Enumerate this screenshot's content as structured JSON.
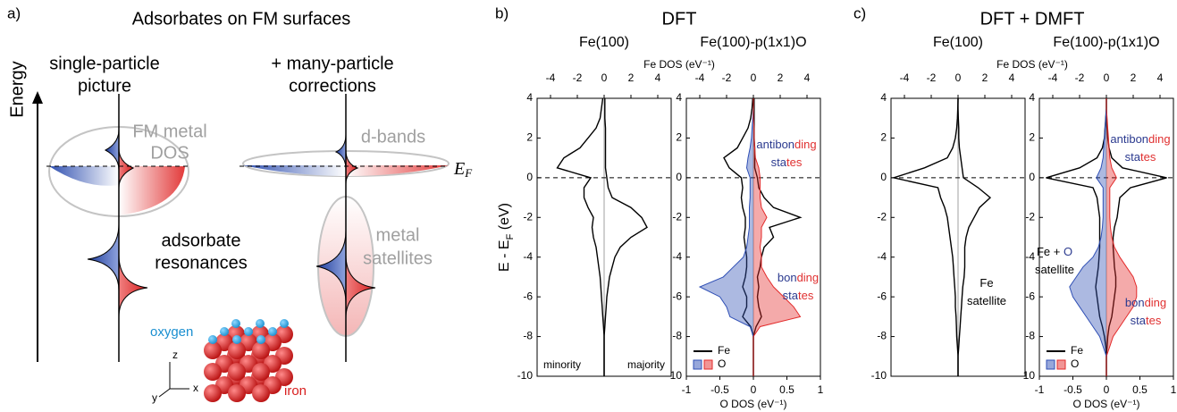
{
  "panel_a": {
    "label": "a)",
    "title": "Adsorbates on FM surfaces",
    "energy_label": "Energy",
    "left_heading": [
      "single-particle",
      "picture"
    ],
    "right_heading": [
      "+ many-particle",
      "corrections"
    ],
    "metal_dos": [
      "FM metal",
      "DOS"
    ],
    "d_bands": "d-bands",
    "fermi": {
      "main": "E",
      "sub": "F"
    },
    "adsorbate": [
      "adsorbate",
      "resonances"
    ],
    "satellites": [
      "metal",
      "satellites"
    ],
    "oxygen": "oxygen",
    "iron": "iron",
    "axes": {
      "z": "z",
      "y": "y",
      "x": "x"
    }
  },
  "panels": [
    {
      "label": "b)",
      "title": "DFT"
    },
    {
      "label": "c)",
      "title": "DFT + DMFT"
    }
  ],
  "chart_data": [
    {
      "type": "line",
      "title": "Fe(100)",
      "ylabel": [
        "E - E",
        "F",
        " (eV)"
      ],
      "xlim": [
        -5,
        5
      ],
      "xticks": [
        -4,
        -2,
        0,
        2,
        4
      ],
      "ylim": [
        -10,
        4
      ],
      "yticks": [
        -10,
        -8,
        -6,
        -4,
        -2,
        0,
        2,
        4
      ],
      "y": [
        -10,
        -9.5,
        -9,
        -8.5,
        -8,
        -7.5,
        -7,
        -6.5,
        -6,
        -5.5,
        -5,
        -4.5,
        -4,
        -3.5,
        -3,
        -2.5,
        -2,
        -1.5,
        -1,
        -0.5,
        0,
        0.5,
        1,
        1.5,
        2,
        2.5,
        3,
        3.5,
        4
      ],
      "series": [
        {
          "name": "minority",
          "color": "#000000",
          "values": [
            0,
            0,
            0,
            0,
            0,
            -0.05,
            -0.1,
            -0.15,
            -0.2,
            -0.25,
            -0.3,
            -0.4,
            -0.5,
            -0.6,
            -0.8,
            -0.9,
            -0.8,
            -1.2,
            -1.5,
            -1.5,
            -1.0,
            -3.5,
            -3.0,
            -1.8,
            -1.2,
            -0.6,
            -0.3,
            -0.2,
            -0.1
          ]
        },
        {
          "name": "majority",
          "color": "#000000",
          "values": [
            0,
            0,
            0,
            0,
            0,
            0.05,
            0.1,
            0.15,
            0.2,
            0.3,
            0.4,
            0.6,
            0.8,
            1.2,
            2.0,
            3.2,
            2.8,
            2.0,
            0.6,
            0.3,
            0.2,
            0.1,
            0.1,
            0.1,
            0.1,
            0.1,
            0.05,
            0.05,
            0.05
          ]
        }
      ]
    },
    {
      "type": "line",
      "title": "Fe(100)-p(1x1)O",
      "xlabel": "Fe DOS (eV⁻¹)",
      "x2label": "O DOS (eV⁻¹)",
      "xlim": [
        -5,
        5
      ],
      "xticks": [
        -4,
        -2,
        0,
        2,
        4
      ],
      "x2lim": [
        -1,
        1
      ],
      "x2ticks": [
        -1,
        -0.5,
        0,
        0.5,
        1
      ],
      "ylim": [
        -10,
        4
      ],
      "yticks": [
        -10,
        -8,
        -6,
        -4,
        -2,
        0,
        2,
        4
      ],
      "legend": "lower left",
      "y": [
        -10,
        -9.5,
        -9,
        -8.5,
        -8,
        -7.5,
        -7,
        -6.5,
        -6,
        -5.5,
        -5,
        -4.5,
        -4,
        -3.5,
        -3,
        -2.5,
        -2,
        -1.5,
        -1,
        -0.5,
        0,
        0.5,
        1,
        1.5,
        2,
        2.5,
        3,
        3.5,
        4
      ],
      "series": [
        {
          "name": "Fe",
          "color": "#000000",
          "values": [
            0,
            0,
            0,
            0,
            0,
            -0.2,
            -0.8,
            -0.5,
            -0.5,
            -0.8,
            -0.6,
            -0.5,
            -0.5,
            -0.6,
            -0.7,
            -0.6,
            -0.6,
            -0.8,
            -0.9,
            -0.8,
            -0.9,
            -1.8,
            -2.2,
            -1.2,
            -0.8,
            -0.4,
            -0.2,
            -0.1,
            -0.05
          ]
        },
        {
          "color": "#000000",
          "values": [
            0,
            0,
            0,
            0,
            0,
            0.2,
            0.6,
            0.4,
            0.3,
            0.4,
            0.3,
            0.5,
            0.6,
            0.8,
            1.5,
            1.2,
            3.5,
            1.5,
            0.8,
            0.4,
            0.3,
            0.1,
            0.1,
            0.1,
            0.05,
            0.05,
            0.05,
            0.05,
            0.05
          ]
        },
        {
          "name": "O",
          "color": "#2f4fb5",
          "axis": "x2",
          "filled": true,
          "values": [
            0,
            0,
            0,
            0,
            0,
            -0.05,
            -0.35,
            -0.4,
            -0.5,
            -0.8,
            -0.45,
            -0.3,
            -0.15,
            -0.1,
            -0.08,
            -0.06,
            -0.06,
            -0.06,
            -0.05,
            -0.05,
            -0.05,
            -0.1,
            -0.08,
            -0.05,
            -0.03,
            -0.02,
            -0.01,
            0,
            0
          ]
        },
        {
          "color": "#e32b2b",
          "axis": "x2",
          "filled": true,
          "values": [
            0,
            0,
            0,
            0,
            0,
            0.1,
            0.7,
            0.6,
            0.45,
            0.3,
            0.2,
            0.12,
            0.12,
            0.1,
            0.12,
            0.12,
            0.2,
            0.12,
            0.1,
            0.1,
            0.1,
            0.08,
            0.03,
            0.02,
            0.01,
            0.01,
            0,
            0,
            0
          ]
        }
      ],
      "annotations": [
        {
          "lines": [
            [
              "antibon",
              "ding"
            ],
            [
              "sta",
              "tes"
            ]
          ],
          "colors": [
            "#2b3a8f",
            "#e03030"
          ]
        },
        {
          "lines": [
            [
              "bon",
              "ding"
            ],
            [
              "sta",
              "tes"
            ]
          ],
          "colors": [
            "#2b3a8f",
            "#e03030"
          ]
        }
      ]
    },
    {
      "type": "line",
      "title": "Fe(100)",
      "xlim": [
        -5,
        5
      ],
      "xticks": [
        -4,
        -2,
        0,
        2,
        4
      ],
      "ylim": [
        -10,
        4
      ],
      "yticks": [
        -10,
        -8,
        -6,
        -4,
        -2,
        0,
        2,
        4
      ],
      "y": [
        -10,
        -9.5,
        -9,
        -8.5,
        -8,
        -7.5,
        -7,
        -6.5,
        -6,
        -5.5,
        -5,
        -4.5,
        -4,
        -3.5,
        -3,
        -2.5,
        -2,
        -1.5,
        -1,
        -0.5,
        0,
        0.5,
        1,
        1.5,
        2,
        2.5,
        3,
        3.5,
        4
      ],
      "series": [
        {
          "color": "#000000",
          "values": [
            0,
            0,
            0,
            -0.05,
            -0.1,
            -0.12,
            -0.15,
            -0.2,
            -0.2,
            -0.25,
            -0.3,
            -0.35,
            -0.4,
            -0.5,
            -0.6,
            -0.7,
            -0.8,
            -1.0,
            -1.3,
            -1.5,
            -4.8,
            -2.5,
            -0.8,
            -0.4,
            -0.2,
            -0.1,
            -0.05,
            -0.02,
            0
          ]
        },
        {
          "color": "#000000",
          "values": [
            0,
            0,
            0,
            0.05,
            0.1,
            0.15,
            0.2,
            0.25,
            0.3,
            0.35,
            0.45,
            0.5,
            0.5,
            0.5,
            0.6,
            0.8,
            1.2,
            1.6,
            2.4,
            1.5,
            0.4,
            0.3,
            0.2,
            0.1,
            0.05,
            0.05,
            0.02,
            0,
            0
          ]
        }
      ],
      "annotations": [
        {
          "lines": [
            [
              "Fe"
            ],
            [
              "satellite"
            ]
          ],
          "colors": [
            "#000000"
          ]
        }
      ]
    },
    {
      "type": "line",
      "title": "Fe(100)-p(1x1)O",
      "xlabel": "Fe DOS (eV⁻¹)",
      "x2label": "O DOS (eV⁻¹)",
      "xlim": [
        -5,
        5
      ],
      "xticks": [
        -4,
        -2,
        0,
        2,
        4
      ],
      "x2lim": [
        -1,
        1
      ],
      "x2ticks": [
        -1,
        -0.5,
        0,
        0.5,
        1
      ],
      "ylim": [
        -10,
        4
      ],
      "yticks": [
        -10,
        -8,
        -6,
        -4,
        -2,
        0,
        2,
        4
      ],
      "legend": "lower left",
      "y": [
        -10,
        -9.5,
        -9,
        -8.5,
        -8,
        -7.5,
        -7,
        -6.5,
        -6,
        -5.5,
        -5,
        -4.5,
        -4,
        -3.5,
        -3,
        -2.5,
        -2,
        -1.5,
        -1,
        -0.5,
        0,
        0.5,
        1,
        1.5,
        2,
        2.5,
        3,
        3.5,
        4
      ],
      "series": [
        {
          "name": "Fe",
          "color": "#000000",
          "values": [
            0,
            0,
            0,
            -0.05,
            -0.15,
            -0.3,
            -0.5,
            -0.6,
            -0.7,
            -0.8,
            -0.7,
            -0.6,
            -0.55,
            -0.5,
            -0.5,
            -0.5,
            -0.5,
            -0.6,
            -0.7,
            -1.0,
            -4.5,
            -2.0,
            -0.7,
            -0.3,
            -0.15,
            -0.1,
            -0.05,
            0,
            0
          ]
        },
        {
          "color": "#000000",
          "values": [
            0,
            0,
            0,
            0.05,
            0.1,
            0.2,
            0.4,
            0.5,
            0.6,
            0.7,
            0.7,
            0.6,
            0.55,
            0.5,
            0.5,
            0.6,
            0.8,
            0.9,
            1.0,
            1.8,
            4.5,
            1.2,
            0.4,
            0.2,
            0.1,
            0.05,
            0.02,
            0,
            0
          ]
        },
        {
          "name": "O",
          "color": "#2f4fb5",
          "axis": "x2",
          "filled": true,
          "values": [
            0,
            0,
            0,
            -0.05,
            -0.1,
            -0.2,
            -0.3,
            -0.4,
            -0.5,
            -0.55,
            -0.45,
            -0.35,
            -0.2,
            -0.12,
            -0.08,
            -0.06,
            -0.05,
            -0.05,
            -0.05,
            -0.05,
            -0.15,
            -0.08,
            -0.05,
            -0.04,
            -0.03,
            -0.02,
            -0.01,
            0,
            0
          ]
        },
        {
          "color": "#e32b2b",
          "axis": "x2",
          "filled": true,
          "values": [
            0,
            0,
            0,
            0.05,
            0.1,
            0.2,
            0.3,
            0.4,
            0.45,
            0.45,
            0.4,
            0.3,
            0.2,
            0.12,
            0.08,
            0.06,
            0.05,
            0.05,
            0.05,
            0.05,
            0.15,
            0.08,
            0.05,
            0.04,
            0.03,
            0.02,
            0.01,
            0,
            0
          ]
        }
      ],
      "annotations": [
        {
          "lines": [
            [
              "antibon",
              "ding"
            ],
            [
              "sta",
              "tes"
            ]
          ],
          "colors": [
            "#2b3a8f",
            "#e03030"
          ]
        },
        {
          "lines": [
            [
              "Fe + ",
              "O"
            ],
            [
              "satellite"
            ]
          ],
          "colors": [
            "#000000",
            "#2b3a8f"
          ]
        },
        {
          "lines": [
            [
              "bon",
              "ding"
            ],
            [
              "sta",
              "tes"
            ]
          ],
          "colors": [
            "#2b3a8f",
            "#e03030"
          ]
        }
      ]
    }
  ]
}
